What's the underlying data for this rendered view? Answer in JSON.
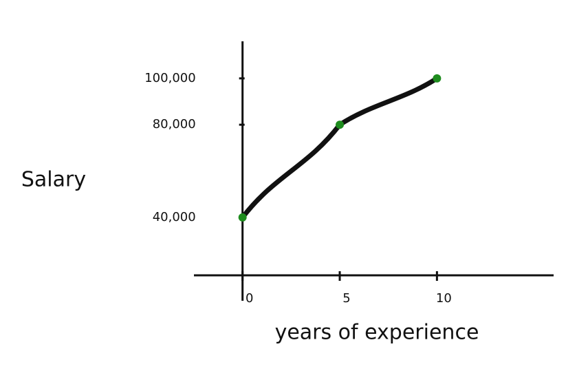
{
  "chart_data": {
    "type": "line",
    "x_label": "years of experience",
    "y_label": "Salary",
    "x": [
      0,
      5,
      10
    ],
    "series": [
      {
        "color": "#111111",
        "point_color": "#1e8c1e",
        "values": [
          40000,
          80000,
          100000
        ]
      }
    ],
    "xlim": [
      -2.5,
      16
    ],
    "xticks": [
      0,
      5,
      10
    ],
    "ylim": [
      15000,
      116000
    ],
    "yticks": [
      {
        "value": 40000,
        "label": "40,000"
      },
      {
        "value": 80000,
        "label": "80,000"
      },
      {
        "value": 100000,
        "label": "100,000"
      }
    ]
  }
}
